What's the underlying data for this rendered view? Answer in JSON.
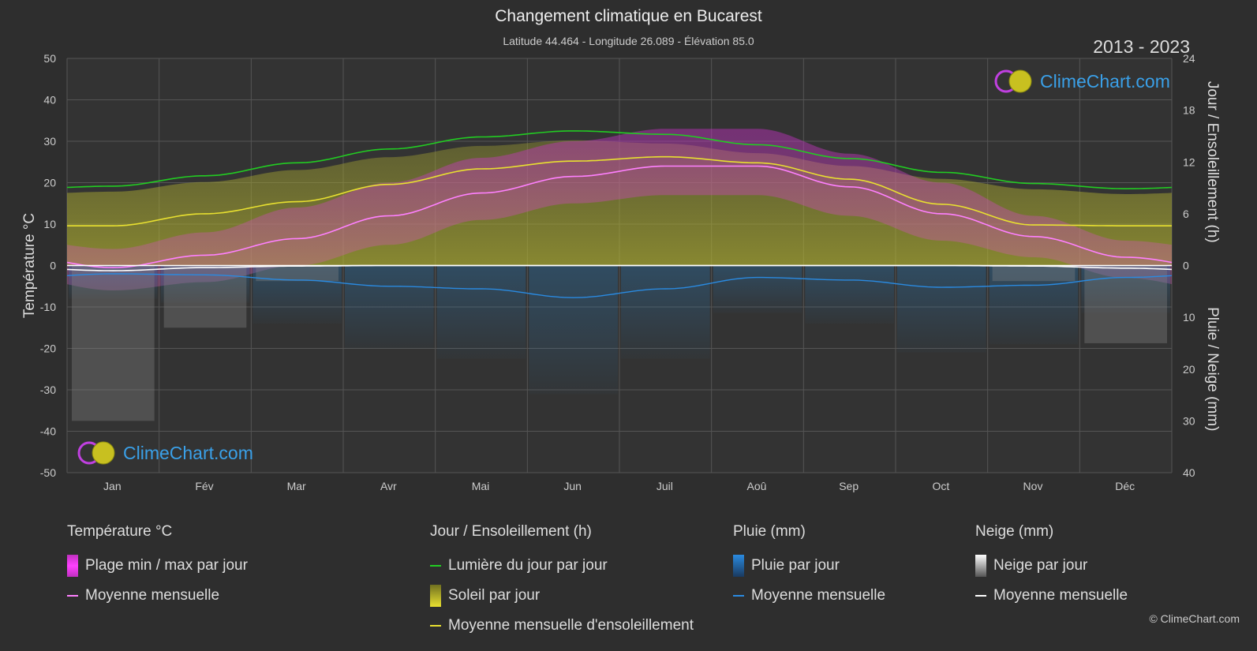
{
  "title": "Changement climatique en Bucarest",
  "subtitle": "Latitude 44.464 - Longitude 26.089 - Élévation 85.0",
  "years": "2013 - 2023",
  "logo_text": "ClimeChart.com",
  "copyright": "© ClimeChart.com",
  "colors": {
    "background": "#2e2e2e",
    "temp_range": "#e040e0",
    "temp_mean": "#ff80ff",
    "daylight": "#22cc22",
    "sunshine_fill": "#b8b830",
    "sunshine_mean": "#e8e030",
    "rain": "#2a7fc0",
    "rain_mean": "#2a8ae0",
    "snow": "#bbbbbb",
    "snow_mean": "#ffffff"
  },
  "chart_data": {
    "type": "line",
    "x_tick_labels": [
      "Jan",
      "Fév",
      "Mar",
      "Avr",
      "Mai",
      "Jun",
      "Juil",
      "Aoû",
      "Sep",
      "Oct",
      "Nov",
      "Déc"
    ],
    "left_axis": {
      "label": "Température °C",
      "range": [
        -50,
        50
      ],
      "ticks": [
        50,
        40,
        30,
        20,
        10,
        0,
        -10,
        -20,
        -30,
        -40,
        -50
      ]
    },
    "right_axis_top": {
      "label": "Jour / Ensoleillement (h)",
      "range": [
        0,
        24
      ],
      "ticks": [
        24,
        18,
        12,
        6,
        0
      ]
    },
    "right_axis_bottom": {
      "label": "Pluie / Neige (mm)",
      "range": [
        0,
        40
      ],
      "ticks": [
        0,
        10,
        20,
        30,
        40
      ]
    },
    "grid": true,
    "series": [
      {
        "name": "Lumière du jour par jour",
        "axis": "hours",
        "values": [
          9.2,
          10.4,
          11.9,
          13.5,
          14.9,
          15.6,
          15.2,
          14.0,
          12.4,
          10.8,
          9.5,
          8.9
        ]
      },
      {
        "name": "Moyenne mensuelle d'ensoleillement",
        "axis": "hours",
        "values": [
          4.6,
          6.0,
          7.4,
          9.4,
          11.2,
          12.1,
          12.6,
          11.9,
          10.0,
          7.1,
          4.7,
          4.6
        ]
      },
      {
        "name": "Moyenne mensuelle",
        "group": "Température °C",
        "axis": "temperature",
        "values": [
          -0.5,
          2.5,
          6.5,
          12.0,
          17.5,
          21.5,
          24.0,
          24.0,
          19.0,
          12.5,
          7.0,
          2.0
        ]
      },
      {
        "name": "Moyenne mensuelle",
        "group": "Pluie (mm)",
        "axis": "precip",
        "values": [
          1.6,
          1.8,
          2.8,
          4.0,
          4.5,
          6.2,
          4.5,
          2.3,
          2.8,
          4.2,
          3.8,
          2.3
        ]
      },
      {
        "name": "Moyenne mensuelle",
        "group": "Neige (mm)",
        "axis": "precip",
        "values": [
          1.0,
          0.4,
          0.1,
          0.0,
          0.0,
          0.0,
          0.0,
          0.0,
          0.0,
          0.0,
          0.1,
          0.5
        ]
      }
    ],
    "daily_temp_range_monthly": {
      "min": [
        -6,
        -4,
        0,
        5,
        11,
        15,
        17,
        17,
        12,
        6,
        2,
        -3
      ],
      "max": [
        4,
        8,
        14,
        20,
        26,
        30,
        33,
        33,
        27,
        20,
        12,
        6
      ]
    }
  },
  "legend": {
    "temperature": {
      "title": "Température °C",
      "items": [
        "Plage min / max par jour",
        "Moyenne mensuelle"
      ]
    },
    "sun": {
      "title": "Jour / Ensoleillement (h)",
      "items": [
        "Lumière du jour par jour",
        "Soleil par jour",
        "Moyenne mensuelle d'ensoleillement"
      ]
    },
    "rain": {
      "title": "Pluie (mm)",
      "items": [
        "Pluie par jour",
        "Moyenne mensuelle"
      ]
    },
    "snow": {
      "title": "Neige (mm)",
      "items": [
        "Neige par jour",
        "Moyenne mensuelle"
      ]
    }
  }
}
